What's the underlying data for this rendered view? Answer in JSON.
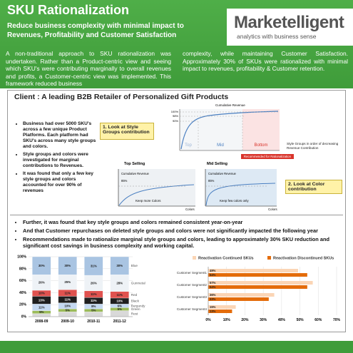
{
  "header": {
    "title": "SKU Rationalization",
    "subtitle": "Reduce business complexity with minimal impact to Revenues, Profitability and Customer Satisfaction",
    "logo": "Marketelligent",
    "tagline": "analytics with business sense"
  },
  "intro": [
    "A non-traditional approach to SKU rationalization was undertaken. Rather than a Product-centric view and seeing which SKU's were contributing marginally to overall revenues and profits, a Customer-centric view was implemented. This framework reduced business",
    "complexity, while maintaining Customer Satisfaction. Approximately 30% of SKUs were rationalized with minimal impact to revenues, profitability & Customer retention."
  ],
  "client": {
    "title": "Client : A leading B2B Retailer of Personalized Gift Products",
    "bullets": [
      "Business had over 5000 SKU's across a few unique Product Platforms. Each platform had SKU's across many style groups and colors.",
      "Style groups and colors were investigated for marginal contributions to Revenues.",
      "It was found that only a few key style groups and colors accounted for over 90% of revenues"
    ],
    "callouts": [
      "1. Look at Style Groups contribution",
      "2. Look at Color contribution"
    ],
    "diagram": {
      "title": "Cumulative Revenue",
      "levels": [
        "100%",
        "98%",
        "90%"
      ],
      "zones": [
        "Top",
        "Mid",
        "Bottom"
      ],
      "x_label": "Style Groups in order of decreasing Revenue Contribution",
      "note": "Recommended for Rationalization"
    },
    "top_selling": {
      "title": "Top Selling",
      "y_label": "Cumulative Revenue",
      "level": "85%",
      "note": "Keep more Colors",
      "x_label": "Colors"
    },
    "mid_selling": {
      "title": "Mid Selling",
      "y_label": "Cumulative Revenue",
      "level": "85%",
      "note": "Keep few colors only",
      "x_label": "Colors"
    }
  },
  "findings": [
    "Further, it was found that key style groups and colors remained consistent year-on-year",
    "And that Customer repurchases on deleted style groups and colors were not significantly impacted the following year",
    "Recommendations made to rationalize marginal style groups and colors, leading to approximately 30% SKU reduction and significant cost savings in business complexity and working capital."
  ],
  "chart_data": [
    {
      "type": "stacked_bar",
      "categories": [
        "2008-09",
        "2009-10",
        "2010-11",
        "2011-12"
      ],
      "series": [
        {
          "name": "Rest",
          "color": "#d9d9d9",
          "values": [
            5,
            8,
            8,
            10
          ]
        },
        {
          "name": "Green",
          "color": "#9bbb59",
          "values": [
            5,
            5,
            5,
            5
          ],
          "value_labels": [
            "5%",
            "5%",
            "5%",
            "5%"
          ]
        },
        {
          "name": "Burgundy",
          "color": "#c5d9f1",
          "values": [
            11,
            10,
            8,
            6
          ],
          "value_labels": [
            "11%",
            "10%",
            "8%",
            "6%"
          ]
        },
        {
          "name": "Black",
          "color": "#1f1f1f",
          "values": [
            13,
            11,
            11,
            10
          ],
          "value_labels": [
            "13%",
            "11%",
            "11%",
            "10%"
          ]
        },
        {
          "name": "Red",
          "color": "#e0524f",
          "values": [
            10,
            11,
            11,
            11
          ],
          "value_labels": [
            "10%",
            "11%",
            "11%",
            "11%"
          ]
        },
        {
          "name": "Gunmetal",
          "color": "#eef2f6",
          "values": [
            26,
            25,
            26,
            28
          ],
          "value_labels": [
            "26%",
            "25%",
            "26%",
            "28%"
          ]
        },
        {
          "name": "Blue",
          "color": "#a9c4e2",
          "values": [
            30,
            30,
            31,
            30
          ],
          "value_labels": [
            "30%",
            "30%",
            "31%",
            "30%"
          ]
        }
      ],
      "ylim": [
        0,
        100
      ],
      "yticks": [
        {
          "value": 0,
          "label": "0%"
        },
        {
          "value": 20,
          "label": "20%"
        },
        {
          "value": 40,
          "label": "40%"
        },
        {
          "value": 60,
          "label": "60%"
        },
        {
          "value": 80,
          "label": "80%"
        },
        {
          "value": 100,
          "label": "100%"
        }
      ]
    },
    {
      "type": "hbar",
      "categories": [
        "Customer Segment1",
        "Customer Segment2",
        "Customer Segment3",
        "Customer Segment4"
      ],
      "series": [
        {
          "name": "Reactivation Continued SKUs",
          "color": "#fbd5b5",
          "values": [
            49,
            57,
            36,
            15
          ],
          "value_labels": [
            "49%",
            "57%",
            "36%",
            "15%"
          ]
        },
        {
          "name": "Reactivation Discontinued SKUs",
          "color": "#e46c0a",
          "values": [
            54,
            54,
            33,
            13
          ],
          "value_labels": [
            "54%",
            "54%",
            "33%",
            "13%"
          ]
        }
      ],
      "xlim": [
        0,
        70
      ],
      "xticks": [
        {
          "value": 0,
          "label": "0%"
        },
        {
          "value": 10,
          "label": "10%"
        },
        {
          "value": 20,
          "label": "20%"
        },
        {
          "value": 30,
          "label": "30%"
        },
        {
          "value": 40,
          "label": "40%"
        },
        {
          "value": 50,
          "label": "50%"
        },
        {
          "value": 60,
          "label": "60%"
        },
        {
          "value": 70,
          "label": "70%"
        }
      ],
      "legend": "top"
    }
  ]
}
